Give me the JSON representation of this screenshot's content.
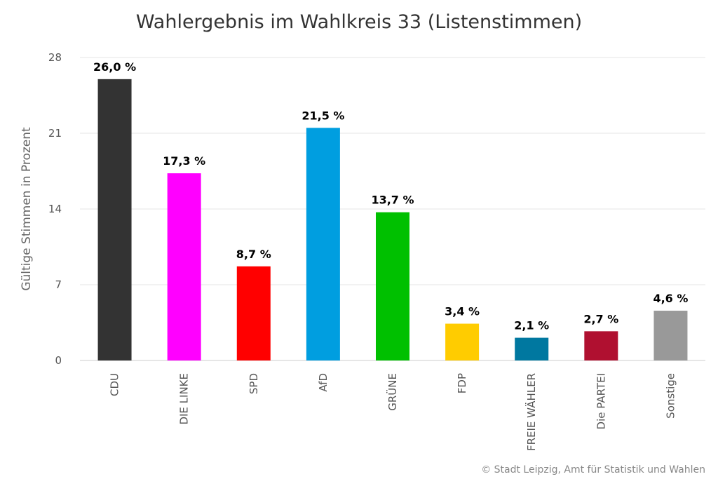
{
  "chart_data": {
    "type": "bar",
    "title": "Wahlergebnis im Wahlkreis 33 (Listenstimmen)",
    "ylabel": "Gültige Stimmen in Prozent",
    "xlabel": "",
    "ylim": [
      0,
      28
    ],
    "yticks": [
      0,
      7,
      14,
      21,
      28
    ],
    "grid": true,
    "categories": [
      "CDU",
      "DIE LINKE",
      "SPD",
      "AfD",
      "GRÜNE",
      "FDP",
      "FREIE WÄHLER",
      "Die PARTEI",
      "Sonstige"
    ],
    "values": [
      26.0,
      17.3,
      8.7,
      21.5,
      13.7,
      3.4,
      2.1,
      2.7,
      4.6
    ],
    "data_labels": [
      "26,0 %",
      "17,3 %",
      "8,7 %",
      "21,5 %",
      "13,7 %",
      "3,4 %",
      "2,1 %",
      "2,7 %",
      "4,6 %"
    ],
    "colors": [
      "#333333",
      "#ff00ff",
      "#ff0000",
      "#009ee0",
      "#00c000",
      "#ffcc00",
      "#0078a0",
      "#b01030",
      "#999999"
    ]
  },
  "credit": "© Stadt Leipzig, Amt für Statistik und Wahlen"
}
